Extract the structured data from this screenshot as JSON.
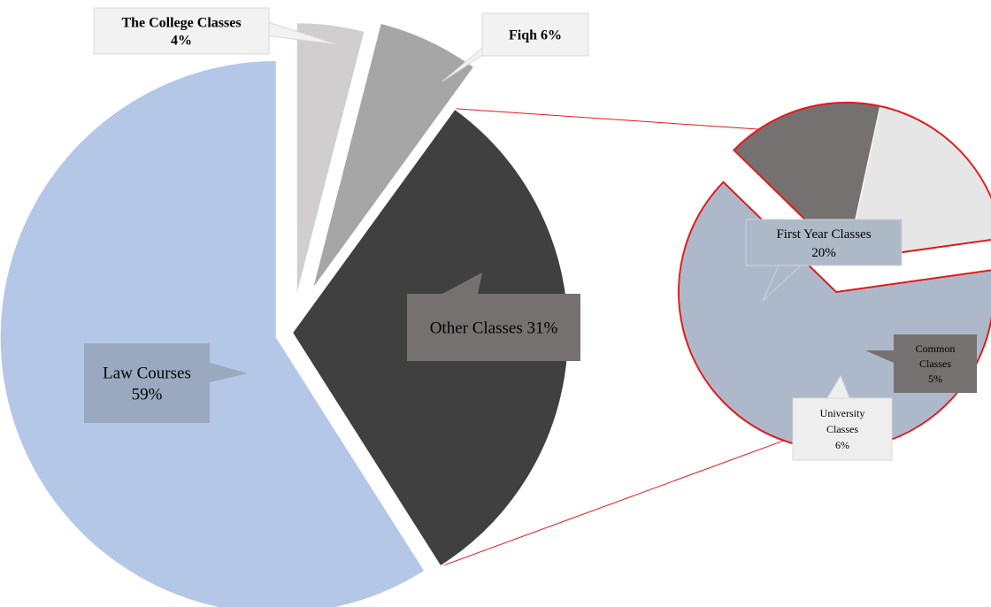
{
  "chart_data": [
    {
      "type": "pie",
      "title": "",
      "slices": [
        {
          "label": "Law Courses",
          "value": 59,
          "value_label": "59%",
          "color": "#b4c7e7"
        },
        {
          "label": "The College Classes",
          "value": 4,
          "value_label": "4%",
          "color": "#d0cece"
        },
        {
          "label": "Fiqh",
          "value": 6,
          "value_label": "6%",
          "color": "#a6a6a6"
        },
        {
          "label": "Other Classes",
          "value": 31,
          "value_label": "31%",
          "color": "#404040"
        }
      ]
    },
    {
      "type": "pie",
      "title": "",
      "breakdown_of": "Other Classes",
      "slices": [
        {
          "label": "First Year Classes",
          "value": 20,
          "value_label": "20%",
          "color": "#adb9ca"
        },
        {
          "label": "Common Classes",
          "value": 5,
          "value_label": "5%",
          "color": "#767171"
        },
        {
          "label": "University Classes",
          "value": 6,
          "value_label": "6%",
          "color": "#e7e6e6"
        }
      ]
    }
  ],
  "colors": {
    "connector": "#e31a1c",
    "label_box_light": "#f2f2f2",
    "label_box_blue": "#9aa9bf",
    "label_box_dark": "#767171",
    "label_box_sub": "#aeb9c8"
  }
}
